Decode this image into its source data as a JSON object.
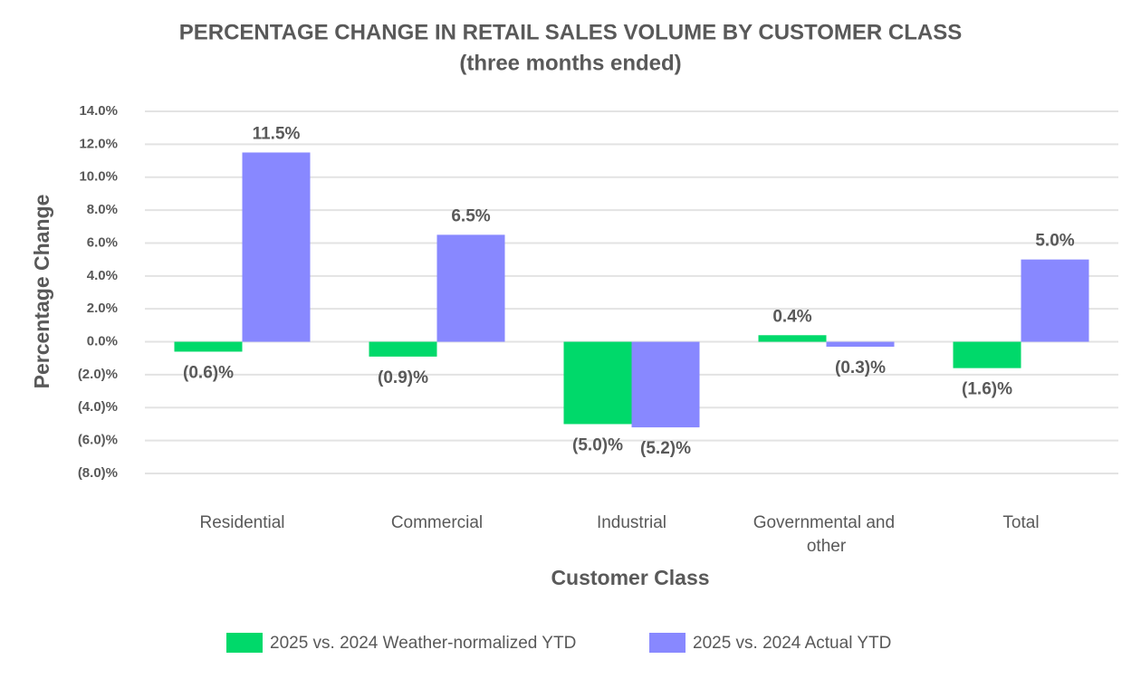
{
  "chart_data": {
    "type": "bar",
    "title": "PERCENTAGE CHANGE IN  RETAIL SALES VOLUME BY CUSTOMER CLASS",
    "subtitle": "(three months ended)",
    "x_label": "Customer Class",
    "y_label": "Percentage Change",
    "categories": [
      "Residential",
      "Commercial",
      "Industrial",
      "Governmental and other",
      "Total"
    ],
    "series": [
      {
        "name": "2025 vs. 2024 Weather-normalized YTD",
        "color": "#00d96a",
        "values": [
          -0.6,
          -0.9,
          -5.0,
          0.4,
          -1.6
        ],
        "value_labels": [
          "(0.6)%",
          "(0.9)%",
          "(5.0)%",
          "0.4%",
          "(1.6)%"
        ]
      },
      {
        "name": "2025 vs. 2024 Actual YTD",
        "color": "#8888ff",
        "values": [
          11.5,
          6.5,
          -5.2,
          -0.3,
          5.0
        ],
        "value_labels": [
          "11.5%",
          "6.5%",
          "(5.2)%",
          "(0.3)%",
          "5.0%"
        ]
      }
    ],
    "ylim": [
      -8,
      14
    ],
    "yticks": [
      {
        "value": 14,
        "label": "14.0%"
      },
      {
        "value": 12,
        "label": "12.0%"
      },
      {
        "value": 10,
        "label": "10.0%"
      },
      {
        "value": 8,
        "label": "8.0%"
      },
      {
        "value": 6,
        "label": "6.0%"
      },
      {
        "value": 4,
        "label": "4.0%"
      },
      {
        "value": 2,
        "label": "2.0%"
      },
      {
        "value": 0,
        "label": "0.0%"
      },
      {
        "value": -2,
        "label": "(2.0)%"
      },
      {
        "value": -4,
        "label": "(4.0)%"
      },
      {
        "value": -6,
        "label": "(6.0)%"
      },
      {
        "value": -8,
        "label": "(8.0)%"
      }
    ],
    "grid": true,
    "legend": "bottom"
  }
}
